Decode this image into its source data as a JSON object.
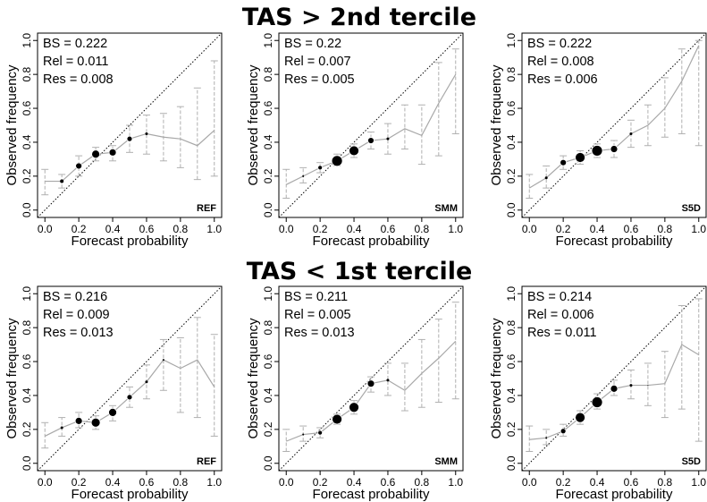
{
  "row_titles": [
    "TAS > 2nd tercile",
    "TAS < 1st tercile"
  ],
  "axis": {
    "xlabel": "Forecast probability",
    "ylabel": "Observed frequency",
    "xticks": [
      "0.0",
      "0.2",
      "0.4",
      "0.6",
      "0.8",
      "1.0"
    ],
    "yticks": [
      "0.0",
      "0.2",
      "0.4",
      "0.6",
      "0.8",
      "1.0"
    ]
  },
  "colors": {
    "line": "#a8a8a8",
    "errorbar": "#b0b0b0",
    "point": "#000000",
    "diagonal": "#000000"
  },
  "chart_data": [
    {
      "type": "scatter",
      "model": "REF",
      "row_title": "TAS > 2nd tercile",
      "xlim": [
        0,
        1
      ],
      "ylim": [
        0,
        1
      ],
      "grid": false,
      "stats": [
        "BS = 0.222",
        "Rel = 0.011",
        "Res = 0.008"
      ],
      "diagonal": true,
      "x": [
        0.0,
        0.1,
        0.2,
        0.3,
        0.4,
        0.5,
        0.6,
        0.7,
        0.8,
        0.9,
        1.0
      ],
      "y": [
        0.17,
        0.17,
        0.26,
        0.33,
        0.34,
        0.42,
        0.45,
        0.43,
        0.42,
        0.38,
        0.47
      ],
      "ci_low": [
        0.09,
        0.13,
        0.2,
        0.29,
        0.29,
        0.34,
        0.33,
        0.29,
        0.25,
        0.18,
        0.2
      ],
      "ci_high": [
        0.24,
        0.21,
        0.32,
        0.37,
        0.38,
        0.5,
        0.56,
        0.57,
        0.61,
        0.72,
        0.88
      ],
      "point_size": [
        0,
        2,
        3.5,
        4.5,
        4,
        3,
        1.5,
        0,
        0,
        0,
        0
      ]
    },
    {
      "type": "scatter",
      "model": "SMM",
      "row_title": "TAS > 2nd tercile",
      "xlim": [
        0,
        1
      ],
      "ylim": [
        0,
        1
      ],
      "grid": false,
      "stats": [
        "BS = 0.22",
        "Rel = 0.007",
        "Res = 0.005"
      ],
      "diagonal": true,
      "x": [
        0.0,
        0.1,
        0.2,
        0.3,
        0.4,
        0.5,
        0.6,
        0.7,
        0.8,
        0.9,
        1.0
      ],
      "y": [
        0.15,
        0.2,
        0.25,
        0.29,
        0.35,
        0.41,
        0.42,
        0.48,
        0.44,
        0.63,
        0.8
      ],
      "ci_low": [
        0.07,
        0.16,
        0.22,
        0.26,
        0.31,
        0.36,
        0.33,
        0.36,
        0.27,
        0.32,
        0.45
      ],
      "ci_high": [
        0.24,
        0.25,
        0.28,
        0.33,
        0.39,
        0.46,
        0.51,
        0.62,
        0.62,
        0.87,
        0.95
      ],
      "point_size": [
        0,
        1,
        2.5,
        6,
        5.5,
        3.5,
        1.5,
        0,
        0,
        0,
        0
      ]
    },
    {
      "type": "scatter",
      "model": "S5D",
      "row_title": "TAS > 2nd tercile",
      "xlim": [
        0,
        1
      ],
      "ylim": [
        0,
        1
      ],
      "grid": false,
      "stats": [
        "BS = 0.222",
        "Rel = 0.008",
        "Res = 0.006"
      ],
      "diagonal": true,
      "x": [
        0.0,
        0.1,
        0.2,
        0.3,
        0.4,
        0.5,
        0.6,
        0.7,
        0.8,
        0.9,
        1.0
      ],
      "y": [
        0.13,
        0.19,
        0.28,
        0.31,
        0.35,
        0.36,
        0.45,
        0.5,
        0.6,
        0.76,
        0.97
      ],
      "ci_low": [
        0.07,
        0.13,
        0.24,
        0.27,
        0.31,
        0.31,
        0.37,
        0.38,
        0.43,
        0.45,
        0.38
      ],
      "ci_high": [
        0.21,
        0.26,
        0.32,
        0.35,
        0.39,
        0.41,
        0.53,
        0.62,
        0.78,
        0.95,
        1.0
      ],
      "point_size": [
        0,
        1.5,
        3.5,
        5.5,
        6,
        4,
        1.5,
        0,
        0,
        0,
        0
      ]
    },
    {
      "type": "scatter",
      "model": "REF",
      "row_title": "TAS < 1st tercile",
      "xlim": [
        0,
        1
      ],
      "ylim": [
        0,
        1
      ],
      "grid": false,
      "stats": [
        "BS = 0.216",
        "Rel = 0.009",
        "Res = 0.013"
      ],
      "diagonal": true,
      "x": [
        0.0,
        0.1,
        0.2,
        0.3,
        0.4,
        0.5,
        0.6,
        0.7,
        0.8,
        0.9,
        1.0
      ],
      "y": [
        0.16,
        0.21,
        0.25,
        0.24,
        0.3,
        0.39,
        0.48,
        0.61,
        0.56,
        0.61,
        0.45
      ],
      "ci_low": [
        0.09,
        0.16,
        0.21,
        0.2,
        0.25,
        0.33,
        0.38,
        0.43,
        0.3,
        0.27,
        0.16
      ],
      "ci_high": [
        0.24,
        0.27,
        0.3,
        0.28,
        0.34,
        0.45,
        0.58,
        0.73,
        0.74,
        0.86,
        0.76
      ],
      "point_size": [
        0,
        1.5,
        4,
        5,
        4.5,
        3,
        1.5,
        1,
        0,
        0,
        0
      ]
    },
    {
      "type": "scatter",
      "model": "SMM",
      "row_title": "TAS < 1st tercile",
      "xlim": [
        0,
        1
      ],
      "ylim": [
        0,
        1
      ],
      "grid": false,
      "stats": [
        "BS = 0.211",
        "Rel = 0.005",
        "Res = 0.013"
      ],
      "diagonal": true,
      "x": [
        0.0,
        0.1,
        0.2,
        0.3,
        0.4,
        0.5,
        0.6,
        0.7,
        0.8,
        0.9,
        1.0
      ],
      "y": [
        0.13,
        0.17,
        0.18,
        0.26,
        0.33,
        0.47,
        0.49,
        0.43,
        0.53,
        0.62,
        0.72
      ],
      "ci_low": [
        0.07,
        0.13,
        0.15,
        0.23,
        0.29,
        0.42,
        0.4,
        0.31,
        0.33,
        0.36,
        0.38
      ],
      "ci_high": [
        0.2,
        0.22,
        0.21,
        0.29,
        0.37,
        0.51,
        0.59,
        0.59,
        0.73,
        0.85,
        0.95
      ],
      "point_size": [
        0,
        1,
        2.5,
        5.5,
        5.5,
        4,
        1.5,
        0,
        0,
        0,
        0
      ]
    },
    {
      "type": "scatter",
      "model": "S5D",
      "row_title": "TAS < 1st tercile",
      "xlim": [
        0,
        1
      ],
      "ylim": [
        0,
        1
      ],
      "grid": false,
      "stats": [
        "BS = 0.214",
        "Rel = 0.006",
        "Res = 0.011"
      ],
      "diagonal": true,
      "x": [
        0.0,
        0.1,
        0.2,
        0.3,
        0.4,
        0.5,
        0.6,
        0.7,
        0.8,
        0.9,
        1.0
      ],
      "y": [
        0.14,
        0.15,
        0.19,
        0.27,
        0.36,
        0.44,
        0.46,
        0.46,
        0.47,
        0.7,
        0.64
      ],
      "ci_low": [
        0.07,
        0.11,
        0.16,
        0.23,
        0.32,
        0.4,
        0.38,
        0.34,
        0.27,
        0.32,
        0.13
      ],
      "ci_high": [
        0.22,
        0.2,
        0.23,
        0.31,
        0.41,
        0.49,
        0.55,
        0.59,
        0.66,
        0.93,
        0.97
      ],
      "point_size": [
        0,
        1,
        3,
        5.5,
        6,
        4,
        1.5,
        0.5,
        0,
        0,
        0
      ]
    }
  ]
}
